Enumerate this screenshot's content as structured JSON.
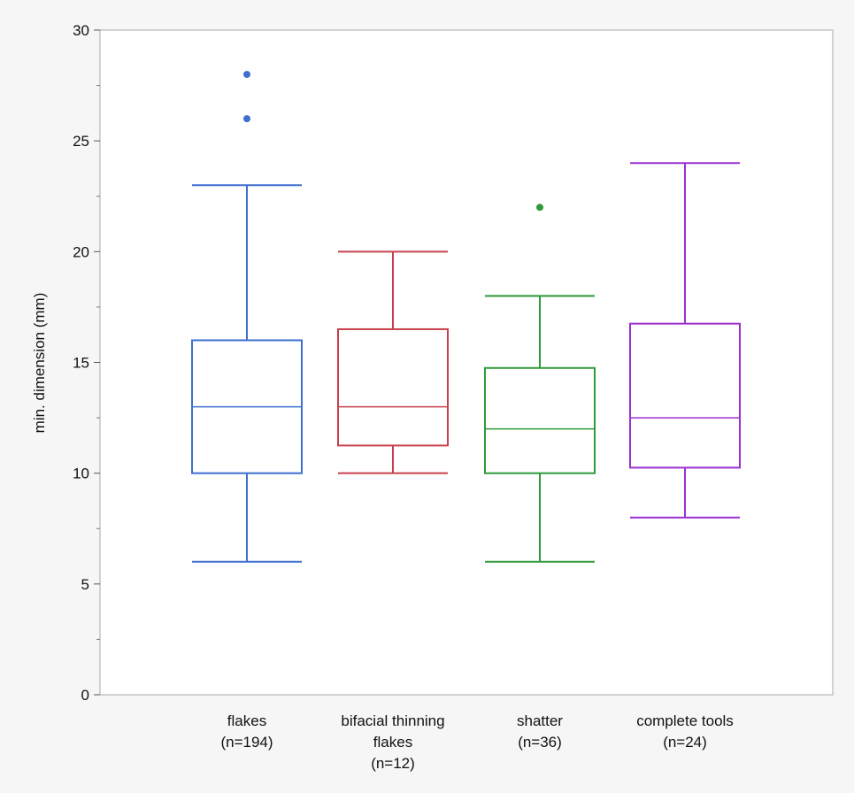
{
  "chart_data": {
    "type": "box",
    "title": "",
    "xlabel": "",
    "ylabel": "min. dimension (mm)",
    "ylim": [
      0,
      30
    ],
    "yticks": [
      0,
      5,
      10,
      15,
      20,
      25,
      30
    ],
    "grid": false,
    "groups": [
      {
        "label_lines": [
          "flakes",
          "(n=194)"
        ],
        "color": "#3f6fd1",
        "min": 6,
        "q1": 10,
        "median": 13,
        "q3": 16,
        "max": 23,
        "outliers": [
          26,
          28
        ]
      },
      {
        "label_lines": [
          "bifacial thinning",
          "flakes",
          "(n=12)"
        ],
        "color": "#c8404c",
        "min": 10,
        "q1": 11.25,
        "median": 13,
        "q3": 16.5,
        "max": 20,
        "outliers": []
      },
      {
        "label_lines": [
          "shatter",
          "(n=36)"
        ],
        "color": "#2e9a3a",
        "min": 6,
        "q1": 10,
        "median": 12,
        "q3": 14.75,
        "max": 18,
        "outliers": [
          22
        ]
      },
      {
        "label_lines": [
          "complete tools",
          "(n=24)"
        ],
        "color": "#9b30d0",
        "min": 8,
        "q1": 10.25,
        "median": 12.5,
        "q3": 16.75,
        "max": 24,
        "outliers": []
      }
    ]
  }
}
